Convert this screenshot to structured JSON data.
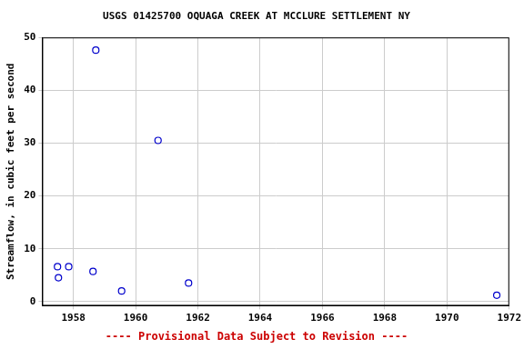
{
  "chart_data": {
    "type": "scatter",
    "title": "USGS 01425700 OQUAGA CREEK AT MCCLURE SETTLEMENT NY",
    "y_label": "Streamflow, in cubic feet per second",
    "annotation": "---- Provisional Data Subject to Revision ----",
    "x": [
      1957.49,
      1957.52,
      1957.85,
      1958.63,
      1958.72,
      1959.55,
      1960.72,
      1961.7,
      1971.6
    ],
    "values": [
      6.6,
      4.5,
      6.6,
      5.7,
      47.6,
      2.0,
      30.5,
      3.5,
      1.2
    ],
    "color": "#0000cc",
    "marker": "open_circle",
    "xlim": [
      1957,
      1972
    ],
    "xticks": [
      1958,
      1960,
      1962,
      1964,
      1966,
      1968,
      1970,
      1972
    ],
    "ylim": [
      -0.8,
      50
    ],
    "yticks": [
      0,
      10,
      20,
      30,
      40,
      50
    ],
    "grid": true
  }
}
